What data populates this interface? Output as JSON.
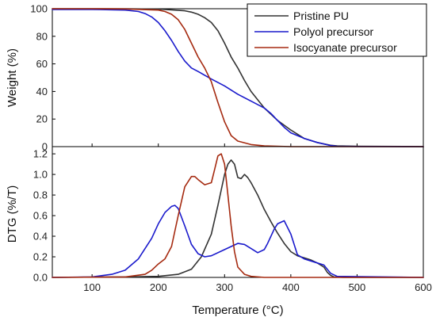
{
  "chart_data": [
    {
      "type": "line",
      "panel": "top",
      "title": "",
      "xlabel": "",
      "ylabel": "Weight (%)",
      "xlim": [
        40,
        600
      ],
      "ylim": [
        0,
        100
      ],
      "xticks": [
        100,
        200,
        300,
        400,
        500,
        600
      ],
      "yticks": [
        0,
        20,
        40,
        60,
        80,
        100
      ],
      "yticklabels": [
        "0",
        "20",
        "40",
        "60",
        "80",
        "100"
      ],
      "legend": "top-right",
      "series": [
        {
          "name": "Pristine PU",
          "color": "#333333",
          "x": [
            40,
            100,
            150,
            200,
            220,
            240,
            250,
            260,
            270,
            280,
            290,
            300,
            310,
            320,
            330,
            340,
            360,
            380,
            400,
            420,
            440,
            460,
            470,
            500,
            600
          ],
          "y": [
            100,
            100,
            100,
            99.7,
            99.2,
            98.5,
            97.5,
            96,
            93.5,
            90,
            84,
            75,
            65,
            57,
            48,
            40,
            28,
            19,
            12,
            6,
            3,
            1,
            0.5,
            0.3,
            0
          ]
        },
        {
          "name": "Polyol precursor",
          "color": "#1a1acc",
          "x": [
            40,
            100,
            150,
            170,
            180,
            190,
            200,
            210,
            220,
            230,
            240,
            250,
            260,
            280,
            300,
            320,
            340,
            360,
            370,
            380,
            390,
            400,
            420,
            440,
            460,
            470,
            500,
            600
          ],
          "y": [
            99.5,
            99.5,
            99,
            98,
            96.5,
            94,
            90,
            84,
            77,
            69,
            62,
            57,
            54.5,
            49,
            44,
            38,
            33,
            28,
            24,
            19,
            14,
            10,
            6,
            3,
            0.8,
            0.3,
            0.1,
            0
          ]
        },
        {
          "name": "Isocyanate precursor",
          "color": "#a52a10",
          "x": [
            40,
            100,
            150,
            200,
            210,
            220,
            230,
            240,
            250,
            260,
            270,
            280,
            290,
            300,
            310,
            320,
            340,
            360,
            400,
            600
          ],
          "y": [
            100,
            100,
            99.8,
            99,
            98,
            96,
            92,
            85,
            75,
            65,
            57,
            47,
            32,
            18,
            8,
            4,
            1.5,
            0.5,
            0,
            0
          ]
        }
      ]
    },
    {
      "type": "line",
      "panel": "bottom",
      "title": "",
      "xlabel": "Temperature (°C)",
      "ylabel": "DTG (%/T)",
      "xlim": [
        40,
        600
      ],
      "ylim": [
        0,
        1.27
      ],
      "xticks": [
        100,
        200,
        300,
        400,
        500,
        600
      ],
      "xticklabels": [
        "100",
        "200",
        "300",
        "400",
        "500",
        "600"
      ],
      "yticks": [
        0.0,
        0.2,
        0.4,
        0.6,
        0.8,
        1.0,
        1.2
      ],
      "yticklabels": [
        "0.0",
        "0.2",
        "0.4",
        "0.6",
        "0.8",
        "1.0",
        "1.2"
      ],
      "series": [
        {
          "name": "Pristine PU",
          "color": "#333333",
          "x": [
            40,
            150,
            200,
            230,
            250,
            265,
            280,
            290,
            300,
            305,
            310,
            315,
            320,
            325,
            330,
            335,
            340,
            350,
            360,
            370,
            380,
            390,
            400,
            410,
            420,
            430,
            440,
            450,
            455,
            460,
            465,
            480,
            600
          ],
          "y": [
            0,
            0.005,
            0.01,
            0.03,
            0.08,
            0.2,
            0.42,
            0.7,
            1.0,
            1.1,
            1.14,
            1.1,
            0.97,
            0.96,
            1.0,
            0.97,
            0.92,
            0.8,
            0.66,
            0.54,
            0.43,
            0.33,
            0.25,
            0.21,
            0.19,
            0.17,
            0.14,
            0.1,
            0.05,
            0.02,
            0.005,
            0,
            0
          ]
        },
        {
          "name": "Polyol precursor",
          "color": "#1a1acc",
          "x": [
            40,
            100,
            130,
            150,
            170,
            190,
            200,
            210,
            220,
            225,
            230,
            240,
            250,
            260,
            270,
            280,
            300,
            320,
            330,
            340,
            350,
            360,
            365,
            370,
            375,
            380,
            390,
            400,
            410,
            420,
            430,
            440,
            450,
            455,
            460,
            470,
            600
          ],
          "y": [
            0,
            0.005,
            0.03,
            0.07,
            0.18,
            0.38,
            0.52,
            0.63,
            0.69,
            0.7,
            0.67,
            0.5,
            0.32,
            0.23,
            0.2,
            0.21,
            0.27,
            0.33,
            0.32,
            0.28,
            0.24,
            0.27,
            0.33,
            0.4,
            0.47,
            0.52,
            0.55,
            0.42,
            0.22,
            0.18,
            0.16,
            0.14,
            0.12,
            0.08,
            0.04,
            0.01,
            0
          ]
        },
        {
          "name": "Isocyanate precursor",
          "color": "#a52a10",
          "x": [
            40,
            150,
            180,
            190,
            200,
            210,
            220,
            230,
            240,
            250,
            255,
            260,
            270,
            280,
            285,
            290,
            295,
            300,
            305,
            310,
            315,
            320,
            330,
            340,
            360,
            400,
            600
          ],
          "y": [
            0,
            0.005,
            0.03,
            0.07,
            0.13,
            0.18,
            0.3,
            0.6,
            0.88,
            0.98,
            0.98,
            0.95,
            0.9,
            0.92,
            1.05,
            1.18,
            1.2,
            1.1,
            0.8,
            0.5,
            0.25,
            0.1,
            0.03,
            0.01,
            0,
            0,
            0
          ]
        }
      ]
    }
  ]
}
